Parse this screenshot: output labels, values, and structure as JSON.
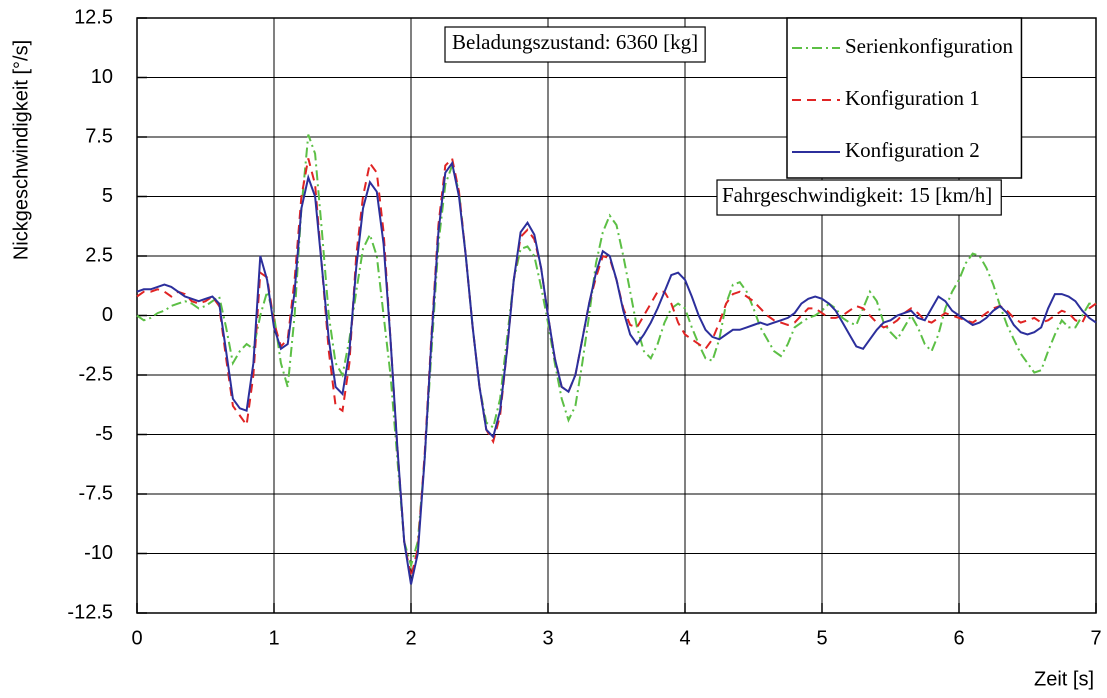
{
  "chart_data": {
    "type": "line",
    "y_label": "Nickgeschwindigkeit [°/s]",
    "x_label": "Zeit [s]",
    "annotations": [
      "Beladungszustand: 6360 [kg]",
      "Fahrgeschwindigkeit: 15 [km/h]"
    ],
    "xlim": [
      0,
      7
    ],
    "xticks": [
      0,
      1,
      2,
      3,
      4,
      5,
      6,
      7
    ],
    "ylim": [
      -12.5,
      12.5
    ],
    "yticks": [
      -12.5,
      -10,
      -7.5,
      -5,
      -2.5,
      0,
      2.5,
      5,
      7.5,
      10,
      12.5
    ],
    "grid": true,
    "legend": "upper right",
    "x": [
      0,
      0.05,
      0.1,
      0.15,
      0.2,
      0.25,
      0.3,
      0.35,
      0.4,
      0.45,
      0.5,
      0.55,
      0.6,
      0.65,
      0.7,
      0.75,
      0.8,
      0.85,
      0.9,
      0.95,
      1,
      1.05,
      1.1,
      1.15,
      1.2,
      1.25,
      1.3,
      1.35,
      1.4,
      1.45,
      1.5,
      1.55,
      1.6,
      1.65,
      1.7,
      1.75,
      1.8,
      1.85,
      1.9,
      1.95,
      2,
      2.05,
      2.1,
      2.15,
      2.2,
      2.25,
      2.3,
      2.35,
      2.4,
      2.45,
      2.5,
      2.55,
      2.6,
      2.65,
      2.7,
      2.75,
      2.8,
      2.85,
      2.9,
      2.95,
      3,
      3.05,
      3.1,
      3.15,
      3.2,
      3.25,
      3.3,
      3.35,
      3.4,
      3.45,
      3.5,
      3.55,
      3.6,
      3.65,
      3.7,
      3.75,
      3.8,
      3.85,
      3.9,
      3.95,
      4,
      4.05,
      4.1,
      4.15,
      4.2,
      4.25,
      4.3,
      4.35,
      4.4,
      4.45,
      4.5,
      4.55,
      4.6,
      4.65,
      4.7,
      4.75,
      4.8,
      4.85,
      4.9,
      4.95,
      5,
      5.05,
      5.1,
      5.15,
      5.2,
      5.25,
      5.3,
      5.35,
      5.4,
      5.45,
      5.5,
      5.55,
      5.6,
      5.65,
      5.7,
      5.75,
      5.8,
      5.85,
      5.9,
      5.95,
      6,
      6.05,
      6.1,
      6.15,
      6.2,
      6.25,
      6.3,
      6.35,
      6.4,
      6.45,
      6.5,
      6.55,
      6.6,
      6.65,
      6.7,
      6.75,
      6.8,
      6.85,
      6.9,
      6.95,
      7
    ],
    "series": [
      {
        "name": "Serienkonfiguration",
        "color": "#5cbf45",
        "style": "dashdot",
        "values": [
          0.0,
          -0.2,
          -0.1,
          0.1,
          0.2,
          0.4,
          0.5,
          0.6,
          0.5,
          0.3,
          0.4,
          0.6,
          0.8,
          -0.5,
          -2.0,
          -1.5,
          -1.2,
          -1.4,
          0.0,
          1.0,
          0.0,
          -2.0,
          -3.0,
          0.0,
          4.5,
          7.6,
          6.8,
          3.5,
          0.0,
          -2.0,
          -2.5,
          -1.0,
          1.0,
          2.8,
          3.4,
          2.5,
          0.0,
          -2.5,
          -6.0,
          -9.5,
          -10.5,
          -9.5,
          -6.0,
          -1.5,
          3.0,
          5.5,
          6.3,
          5.2,
          2.5,
          -0.5,
          -3.0,
          -4.5,
          -4.7,
          -3.5,
          -1.0,
          1.5,
          2.8,
          2.9,
          2.5,
          1.2,
          -0.3,
          -2.0,
          -3.5,
          -4.4,
          -3.8,
          -2.0,
          0.0,
          2.2,
          3.5,
          4.2,
          3.8,
          2.5,
          1.0,
          -0.5,
          -1.5,
          -1.8,
          -1.2,
          -0.3,
          0.3,
          0.5,
          0.3,
          -0.5,
          -1.2,
          -1.8,
          -1.9,
          -1.0,
          0.5,
          1.3,
          1.4,
          1.0,
          0.3,
          -0.5,
          -1.0,
          -1.5,
          -1.7,
          -1.2,
          -0.5,
          -0.3,
          -0.1,
          0.0,
          0.2,
          0.5,
          0.3,
          -0.1,
          -0.3,
          -0.4,
          0.3,
          1.0,
          0.6,
          -0.3,
          -0.7,
          -1.0,
          -0.5,
          0.0,
          -0.5,
          -1.2,
          -1.5,
          -0.8,
          0.3,
          1.0,
          1.5,
          2.2,
          2.6,
          2.5,
          2.0,
          1.3,
          0.4,
          -0.4,
          -1.0,
          -1.6,
          -2.0,
          -2.4,
          -2.3,
          -1.5,
          -0.8,
          -0.2,
          -0.5,
          -0.5,
          0.0,
          0.5,
          0.5
        ]
      },
      {
        "name": "Konfiguration 1",
        "color": "#e02424",
        "style": "dashed",
        "values": [
          0.8,
          1.0,
          1.0,
          1.1,
          1.0,
          0.8,
          1.0,
          0.9,
          0.6,
          0.5,
          0.6,
          0.8,
          0.4,
          -1.8,
          -3.8,
          -4.2,
          -4.6,
          -2.5,
          1.8,
          1.6,
          -0.3,
          -1.3,
          -1.0,
          1.5,
          5.0,
          6.6,
          5.5,
          2.0,
          -1.5,
          -3.8,
          -4.0,
          -2.0,
          2.5,
          5.0,
          6.4,
          6.0,
          3.5,
          -1.0,
          -5.5,
          -9.5,
          -11.0,
          -9.8,
          -5.8,
          -0.8,
          3.8,
          6.3,
          6.6,
          5.2,
          2.5,
          -0.5,
          -3.0,
          -4.8,
          -5.3,
          -4.2,
          -1.5,
          1.5,
          3.3,
          3.6,
          3.2,
          2.0,
          0.0,
          -1.8,
          -3.0,
          -3.2,
          -2.5,
          -1.0,
          0.5,
          1.6,
          2.5,
          2.4,
          1.5,
          0.3,
          -0.4,
          -0.5,
          0.0,
          0.5,
          1.0,
          1.0,
          0.5,
          -0.3,
          -0.8,
          -1.0,
          -1.2,
          -1.4,
          -1.0,
          -0.3,
          0.5,
          0.9,
          1.0,
          0.8,
          0.6,
          0.3,
          0.0,
          -0.2,
          -0.3,
          -0.4,
          -0.3,
          0.0,
          0.3,
          0.3,
          0.1,
          -0.1,
          -0.1,
          0.0,
          0.2,
          0.4,
          0.3,
          0.0,
          -0.3,
          -0.5,
          -0.4,
          -0.2,
          0.1,
          0.3,
          0.1,
          -0.2,
          -0.3,
          -0.1,
          0.1,
          0.0,
          -0.1,
          -0.2,
          -0.3,
          -0.1,
          0.1,
          0.3,
          0.4,
          0.2,
          -0.1,
          -0.3,
          -0.2,
          -0.1,
          -0.3,
          -0.2,
          0.0,
          0.2,
          0.1,
          -0.2,
          -0.3,
          0.3,
          0.5
        ]
      },
      {
        "name": "Konfiguration 2",
        "color": "#2c2f9c",
        "style": "solid",
        "values": [
          1.0,
          1.1,
          1.1,
          1.2,
          1.3,
          1.2,
          1.0,
          0.8,
          0.7,
          0.6,
          0.7,
          0.8,
          0.5,
          -1.5,
          -3.5,
          -3.9,
          -4.0,
          -2.0,
          2.5,
          1.5,
          -0.5,
          -1.4,
          -1.2,
          1.0,
          4.5,
          5.8,
          5.0,
          2.0,
          -1.0,
          -3.0,
          -3.3,
          -1.5,
          2.0,
          4.5,
          5.6,
          5.2,
          3.0,
          -1.0,
          -5.5,
          -9.5,
          -11.3,
          -10.0,
          -6.0,
          -1.0,
          3.5,
          6.0,
          6.4,
          5.0,
          2.5,
          -0.5,
          -3.0,
          -4.8,
          -5.1,
          -4.0,
          -1.5,
          1.5,
          3.5,
          3.9,
          3.4,
          2.0,
          0.0,
          -1.8,
          -3.0,
          -3.2,
          -2.5,
          -1.0,
          0.5,
          1.8,
          2.7,
          2.5,
          1.5,
          0.2,
          -0.8,
          -1.2,
          -0.8,
          -0.3,
          0.3,
          1.0,
          1.7,
          1.8,
          1.5,
          0.8,
          0.0,
          -0.6,
          -0.9,
          -1.0,
          -0.8,
          -0.6,
          -0.6,
          -0.5,
          -0.4,
          -0.3,
          -0.4,
          -0.3,
          -0.2,
          -0.1,
          0.1,
          0.5,
          0.7,
          0.8,
          0.7,
          0.5,
          0.2,
          -0.3,
          -0.8,
          -1.3,
          -1.4,
          -1.0,
          -0.6,
          -0.3,
          -0.2,
          0.0,
          0.1,
          0.2,
          -0.1,
          -0.2,
          0.3,
          0.8,
          0.6,
          0.2,
          0.0,
          -0.2,
          -0.4,
          -0.3,
          -0.1,
          0.2,
          0.4,
          0.1,
          -0.4,
          -0.7,
          -0.8,
          -0.7,
          -0.5,
          0.3,
          0.9,
          0.9,
          0.8,
          0.6,
          0.2,
          -0.1,
          -0.3
        ]
      }
    ]
  }
}
